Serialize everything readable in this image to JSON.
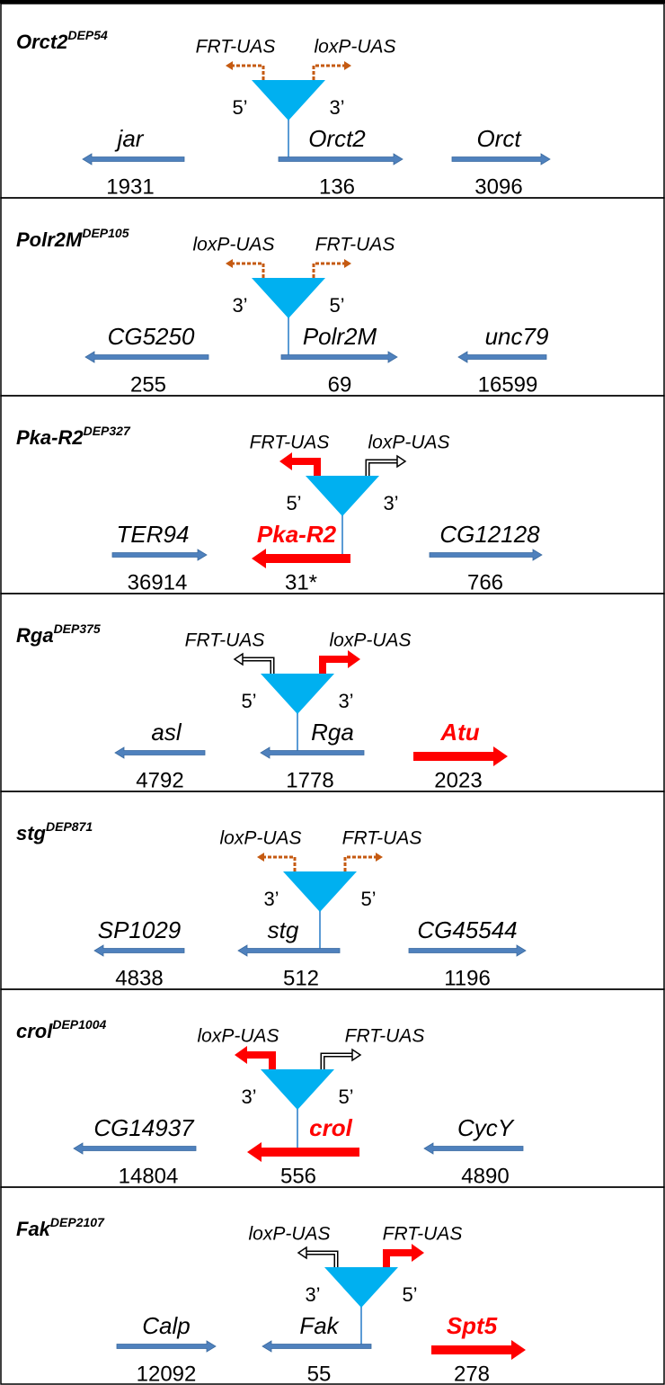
{
  "panels": [
    {
      "title": "Orct2",
      "superscript": "DEP54",
      "uas": [
        {
          "label": "FRT-UAS",
          "style": "dashed"
        },
        {
          "label": "loxP-UAS",
          "style": "dashed"
        }
      ],
      "ends": [
        "5’",
        "3’"
      ],
      "genes": [
        {
          "name": "jar",
          "distance": "1931",
          "direction": "left",
          "style": "plain"
        },
        {
          "name": "Orct2",
          "distance": "136",
          "direction": "right",
          "style": "plain"
        },
        {
          "name": "Orct",
          "distance": "3096",
          "direction": "right",
          "style": "plain"
        }
      ]
    },
    {
      "title": "Polr2M",
      "superscript": "DEP105",
      "uas": [
        {
          "label": "loxP-UAS",
          "style": "dashed"
        },
        {
          "label": "FRT-UAS",
          "style": "dashed"
        }
      ],
      "ends": [
        "3’",
        "5’"
      ],
      "genes": [
        {
          "name": "CG5250",
          "distance": "255",
          "direction": "left",
          "style": "plain"
        },
        {
          "name": "Polr2M",
          "distance": "69",
          "direction": "right",
          "style": "plain"
        },
        {
          "name": "unc79",
          "distance": "16599",
          "direction": "left",
          "style": "plain"
        }
      ]
    },
    {
      "title": "Pka-R2",
      "superscript": "DEP327",
      "uas": [
        {
          "label": "FRT-UAS",
          "style": "active"
        },
        {
          "label": "loxP-UAS",
          "style": "outline"
        }
      ],
      "ends": [
        "5’",
        "3’"
      ],
      "genes": [
        {
          "name": "TER94",
          "distance": "36914",
          "direction": "right",
          "style": "plain"
        },
        {
          "name": "Pka-R2",
          "distance": "31*",
          "direction": "left",
          "style": "highlight"
        },
        {
          "name": "CG12128",
          "distance": "766",
          "direction": "right",
          "style": "plain"
        }
      ]
    },
    {
      "title": "Rga",
      "superscript": "DEP375",
      "uas": [
        {
          "label": "FRT-UAS",
          "style": "outline"
        },
        {
          "label": "loxP-UAS",
          "style": "active"
        }
      ],
      "ends": [
        "5’",
        "3’"
      ],
      "genes": [
        {
          "name": "asl",
          "distance": "4792",
          "direction": "left",
          "style": "plain"
        },
        {
          "name": "Rga",
          "distance": "1778",
          "direction": "left",
          "style": "plain"
        },
        {
          "name": "Atu",
          "distance": "2023",
          "direction": "right",
          "style": "highlight"
        }
      ]
    },
    {
      "title": "stg",
      "superscript": "DEP871",
      "uas": [
        {
          "label": "loxP-UAS",
          "style": "dashed"
        },
        {
          "label": "FRT-UAS",
          "style": "dashed"
        }
      ],
      "ends": [
        "3’",
        "5’"
      ],
      "genes": [
        {
          "name": "SP1029",
          "distance": "4838",
          "direction": "left",
          "style": "plain"
        },
        {
          "name": "stg",
          "distance": "512",
          "direction": "left",
          "style": "plain"
        },
        {
          "name": "CG45544",
          "distance": "1196",
          "direction": "right",
          "style": "plain"
        }
      ]
    },
    {
      "title": "crol",
      "superscript": "DEP1004",
      "uas": [
        {
          "label": "loxP-UAS",
          "style": "active"
        },
        {
          "label": "FRT-UAS",
          "style": "outline"
        }
      ],
      "ends": [
        "3’",
        "5’"
      ],
      "genes": [
        {
          "name": "CG14937",
          "distance": "14804",
          "direction": "left",
          "style": "plain"
        },
        {
          "name": "crol",
          "distance": "556",
          "direction": "left",
          "style": "highlight"
        },
        {
          "name": "CycY",
          "distance": "4890",
          "direction": "left",
          "style": "plain"
        }
      ]
    },
    {
      "title": "Fak",
      "superscript": "DEP2107",
      "uas": [
        {
          "label": "loxP-UAS",
          "style": "outline"
        },
        {
          "label": "FRT-UAS",
          "style": "active"
        }
      ],
      "ends": [
        "3’",
        "5’"
      ],
      "genes": [
        {
          "name": "Calp",
          "distance": "12092",
          "direction": "right",
          "style": "plain"
        },
        {
          "name": "Fak",
          "distance": "55",
          "direction": "left",
          "style": "plain"
        },
        {
          "name": "Spt5",
          "distance": "278",
          "direction": "right",
          "style": "highlight"
        }
      ]
    }
  ]
}
